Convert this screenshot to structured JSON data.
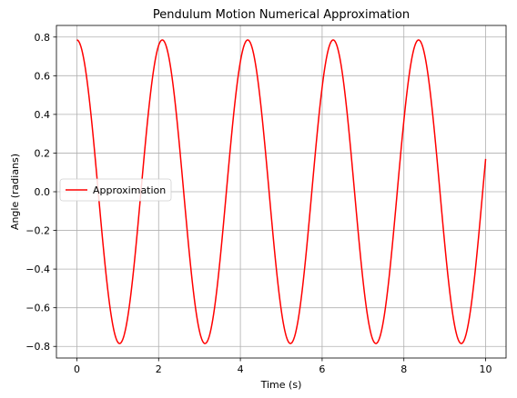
{
  "chart_data": {
    "type": "line",
    "title": "Pendulum Motion Numerical Approximation",
    "xlabel": "Time (s)",
    "ylabel": "Angle (radians)",
    "xlim": [
      -0.5,
      10.5
    ],
    "ylim": [
      -0.86,
      0.86
    ],
    "x_ticks": [
      0,
      2,
      4,
      6,
      8,
      10
    ],
    "x_tick_labels": [
      "0",
      "2",
      "4",
      "6",
      "8",
      "10"
    ],
    "y_ticks": [
      0.8,
      0.6,
      0.4,
      0.2,
      0.0,
      -0.2,
      -0.4,
      -0.6,
      -0.8
    ],
    "y_tick_labels": [
      "0.8",
      "0.6",
      "0.4",
      "0.2",
      "0.0",
      "−0.2",
      "−0.4",
      "−0.6",
      "−0.8"
    ],
    "grid": true,
    "legend_position": "center-left",
    "series": [
      {
        "name": "Approximation",
        "color": "#ff0000",
        "amplitude": 0.785,
        "period": 2.09,
        "t_start": 0,
        "t_end": 10
      }
    ]
  }
}
